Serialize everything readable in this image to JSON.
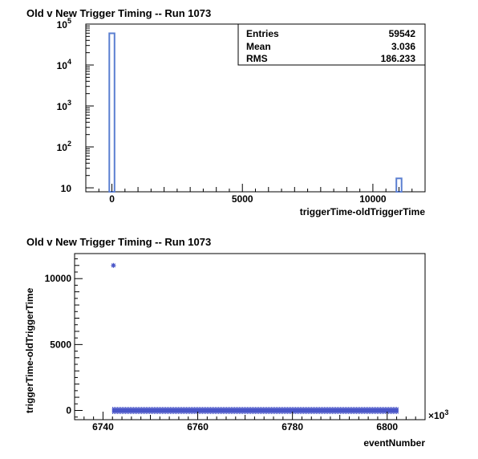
{
  "chart_data": [
    {
      "type": "bar",
      "title": "Old v New Trigger Timing -- Run 1073",
      "xlabel": "triggerTime-oldTriggerTime",
      "ylabel": "",
      "yscale": "log",
      "xlim": [
        -1000,
        12000
      ],
      "ylim": [
        8,
        100000
      ],
      "x_ticks": [
        0,
        5000,
        10000
      ],
      "x_tick_labels": [
        "0",
        "5000",
        "10000"
      ],
      "y_ticks": [
        10,
        100,
        1000,
        10000,
        100000
      ],
      "y_tick_labels": [
        {
          "base": "10",
          "exp": ""
        },
        {
          "base": "10",
          "exp": "2"
        },
        {
          "base": "10",
          "exp": "3"
        },
        {
          "base": "10",
          "exp": "4"
        },
        {
          "base": "10",
          "exp": "5"
        }
      ],
      "bins": [
        {
          "x_low": -100,
          "x_high": 100,
          "count": 59525
        },
        {
          "x_low": 10900,
          "x_high": 11100,
          "count": 17
        }
      ],
      "bar_color": "#5b7fd1",
      "stats": [
        {
          "label": "Entries",
          "value": "59542"
        },
        {
          "label": "Mean",
          "value": "3.036"
        },
        {
          "label": "RMS",
          "value": "186.233"
        }
      ]
    },
    {
      "type": "scatter",
      "title": "Old v New Trigger Timing -- Run 1073",
      "xlabel": "eventNumber",
      "ylabel": "triggerTime-oldTriggerTime",
      "xlim": [
        6734,
        6808
      ],
      "ylim": [
        -700,
        11900
      ],
      "x_ticks": [
        6740,
        6760,
        6780,
        6800
      ],
      "x_tick_labels": [
        "6740",
        "6760",
        "6780",
        "6800"
      ],
      "x_multiplier_base": "×10",
      "x_multiplier_exp": "3",
      "y_ticks": [
        0,
        5000,
        10000
      ],
      "y_tick_labels": [
        "0",
        "5000",
        "10000"
      ],
      "marker_color": "#4a56c8",
      "band": {
        "x_start": 6742.3,
        "x_end": 6802.0,
        "y": 0
      },
      "outliers": [
        {
          "x": 6742.2,
          "y": 11000
        }
      ]
    }
  ]
}
